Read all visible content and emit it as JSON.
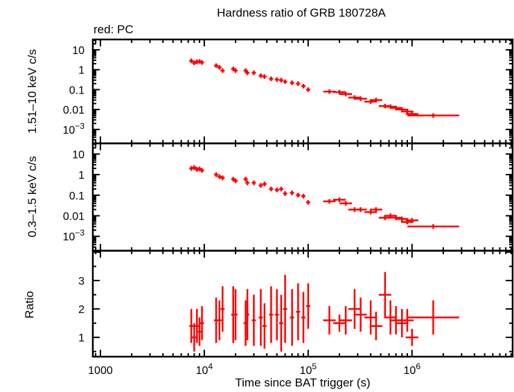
{
  "chart_data": {
    "type": "scatter",
    "title": "Hardness ratio of GRB 180728A",
    "legend_note": "red: PC",
    "xlabel": "Time since BAT trigger (s)",
    "xscale": "log",
    "xlim": [
      845,
      9300000
    ],
    "x_tick_labels": [
      "1000",
      "10^4",
      "10^5",
      "10^6"
    ],
    "series_color": "#ff0000",
    "panels": [
      {
        "ylabel": "1.51–10 keV c/s",
        "yscale": "log",
        "ylim": [
          0.0002,
          33
        ],
        "y_tick_labels": [
          "10",
          "1",
          "0.1",
          "0.01",
          "10^-3"
        ]
      },
      {
        "ylabel": "0.3–1.5 keV c/s",
        "yscale": "log",
        "ylim": [
          0.0002,
          33
        ],
        "y_tick_labels": [
          "10",
          "1",
          "0.1",
          "0.01",
          "10^-3"
        ]
      },
      {
        "ylabel": "Ratio",
        "yscale": "linear",
        "ylim": [
          0.32,
          4.05
        ],
        "y_tick_labels": [
          "1",
          "2",
          "3"
        ]
      }
    ],
    "columns": [
      "time_s",
      "hard_rate",
      "soft_rate",
      "ratio",
      "ratio_err"
    ],
    "points": [
      [
        7500,
        2.8,
        2.0,
        1.4,
        0.6
      ],
      [
        8000,
        2.2,
        2.2,
        1.0,
        0.5
      ],
      [
        8500,
        2.5,
        1.8,
        1.4,
        0.6
      ],
      [
        9000,
        2.6,
        1.9,
        1.2,
        0.5
      ],
      [
        9500,
        2.3,
        1.6,
        1.5,
        0.6
      ],
      [
        13000,
        1.6,
        1.0,
        1.6,
        0.8
      ],
      [
        14000,
        1.3,
        0.8,
        1.6,
        0.7
      ],
      [
        15000,
        0.9,
        0.7,
        2.0,
        0.8
      ],
      [
        19000,
        1.1,
        0.6,
        1.8,
        1.0
      ],
      [
        20000,
        0.9,
        0.5,
        1.8,
        0.9
      ],
      [
        25000,
        0.9,
        0.6,
        1.5,
        0.8
      ],
      [
        26000,
        0.7,
        0.4,
        1.8,
        0.9
      ],
      [
        30000,
        0.7,
        0.4,
        1.6,
        0.9
      ],
      [
        35000,
        0.5,
        0.3,
        1.7,
        1.0
      ],
      [
        38000,
        0.45,
        0.35,
        1.4,
        0.8
      ],
      [
        44000,
        0.35,
        0.2,
        1.8,
        1.0
      ],
      [
        50000,
        0.32,
        0.18,
        1.8,
        0.9
      ],
      [
        55000,
        0.3,
        0.2,
        1.5,
        1.0
      ],
      [
        60000,
        0.25,
        0.12,
        2.0,
        1.2
      ],
      [
        70000,
        0.22,
        0.13,
        1.7,
        1.0
      ],
      [
        80000,
        0.2,
        0.1,
        1.9,
        1.0
      ],
      [
        90000,
        0.15,
        0.09,
        1.7,
        0.9
      ],
      [
        100000,
        0.1,
        0.045,
        2.1,
        0.8
      ],
      [
        160000,
        0.08,
        0.05,
        1.6,
        0.5
      ],
      [
        200000,
        0.075,
        0.06,
        1.5,
        0.3
      ],
      [
        230000,
        0.06,
        0.04,
        1.6,
        0.5
      ],
      [
        280000,
        0.04,
        0.02,
        2.0,
        0.7
      ],
      [
        320000,
        0.035,
        0.02,
        1.8,
        0.6
      ],
      [
        400000,
        0.025,
        0.015,
        1.7,
        0.6
      ],
      [
        450000,
        0.03,
        0.02,
        1.4,
        0.5
      ],
      [
        550000,
        0.015,
        0.008,
        2.5,
        0.8
      ],
      [
        620000,
        0.014,
        0.01,
        1.7,
        0.6
      ],
      [
        700000,
        0.012,
        0.008,
        1.6,
        0.5
      ],
      [
        800000,
        0.01,
        0.007,
        1.5,
        0.5
      ],
      [
        900000,
        0.008,
        0.005,
        1.6,
        0.4
      ],
      [
        1000000,
        0.006,
        0.006,
        1.0,
        0.3
      ],
      [
        1600000,
        0.005,
        0.003,
        1.7,
        0.6
      ]
    ]
  }
}
